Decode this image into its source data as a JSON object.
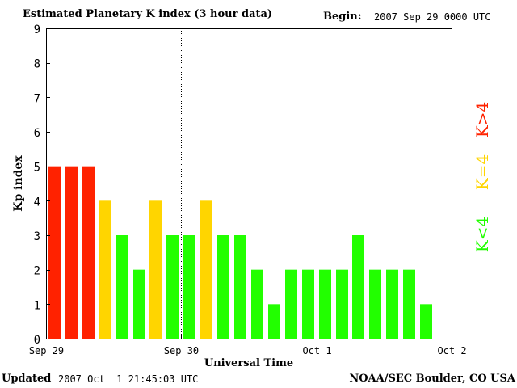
{
  "header": {
    "title": "Estimated Planetary K index (3 hour data)",
    "begin_label": "Begin:",
    "begin_value": "2007 Sep 29 0000 UTC"
  },
  "footer": {
    "updated_label": "Updated",
    "updated_value": "2007 Oct  1 21:45:03 UTC",
    "source": "NOAA/SEC Boulder, CO USA"
  },
  "colors": {
    "high": "#ff2200",
    "equal": "#ffd500",
    "low": "#22ff00"
  },
  "chart_data": {
    "type": "bar",
    "title": "Estimated Planetary K index (3 hour data)",
    "xlabel": "Universal Time",
    "ylabel": "Kp index",
    "ylim": [
      0,
      9
    ],
    "yticks": [
      0,
      1,
      2,
      3,
      4,
      5,
      6,
      7,
      8,
      9
    ],
    "xlim_days": [
      0,
      3
    ],
    "xticks": [
      {
        "day": 0,
        "label": "Sep 29"
      },
      {
        "day": 1,
        "label": "Sep 30"
      },
      {
        "day": 2,
        "label": "Oct 1"
      },
      {
        "day": 3,
        "label": "Oct 2"
      }
    ],
    "day_separators": [
      1,
      2
    ],
    "interval_hours": 3,
    "values": [
      5,
      5,
      5,
      4,
      3,
      2,
      4,
      3,
      3,
      4,
      3,
      3,
      2,
      1,
      2,
      2,
      2,
      2,
      3,
      2,
      2,
      2,
      1
    ],
    "legend": [
      "K<4",
      "K=4",
      "K>4"
    ],
    "legend_placement": "right, vertical",
    "grid": false
  }
}
